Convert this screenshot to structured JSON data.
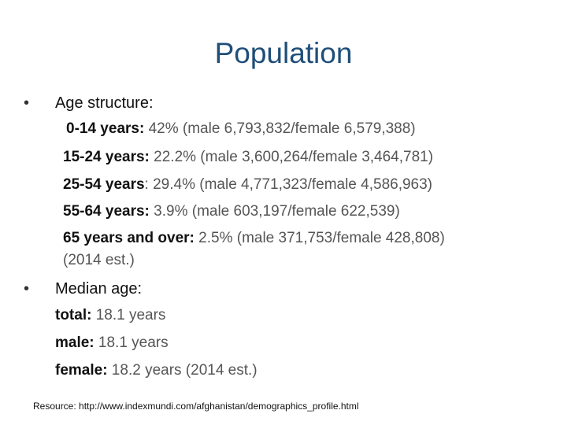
{
  "title": "Population",
  "age_structure": {
    "heading": "Age structure:",
    "rows": [
      {
        "label": "0-14 years:",
        "value": " 42% (male 6,793,832/female 6,579,388)"
      },
      {
        "label": "15-24 years:",
        "value": " 22.2% (male 3,600,264/female 3,464,781)"
      },
      {
        "label": "25-54 years",
        "value": ": 29.4% (male 4,771,323/female 4,586,963)"
      },
      {
        "label": "55-64 years:",
        "value": " 3.9% (male 603,197/female 622,539)"
      },
      {
        "label": "65 years and over:",
        "value": " 2.5% (male 371,753/female 428,808)"
      }
    ],
    "note": "(2014 est.)"
  },
  "median_age": {
    "heading": "Median age:",
    "rows": [
      {
        "label": "total:",
        "value": " 18.1 years"
      },
      {
        "label": "male:",
        "value": " 18.1 years"
      },
      {
        "label": "female:",
        "value": " 18.2 years (2014 est.)"
      }
    ]
  },
  "resource": "Resource: http://www.indexmundi.com/afghanistan/demographics_profile.html"
}
